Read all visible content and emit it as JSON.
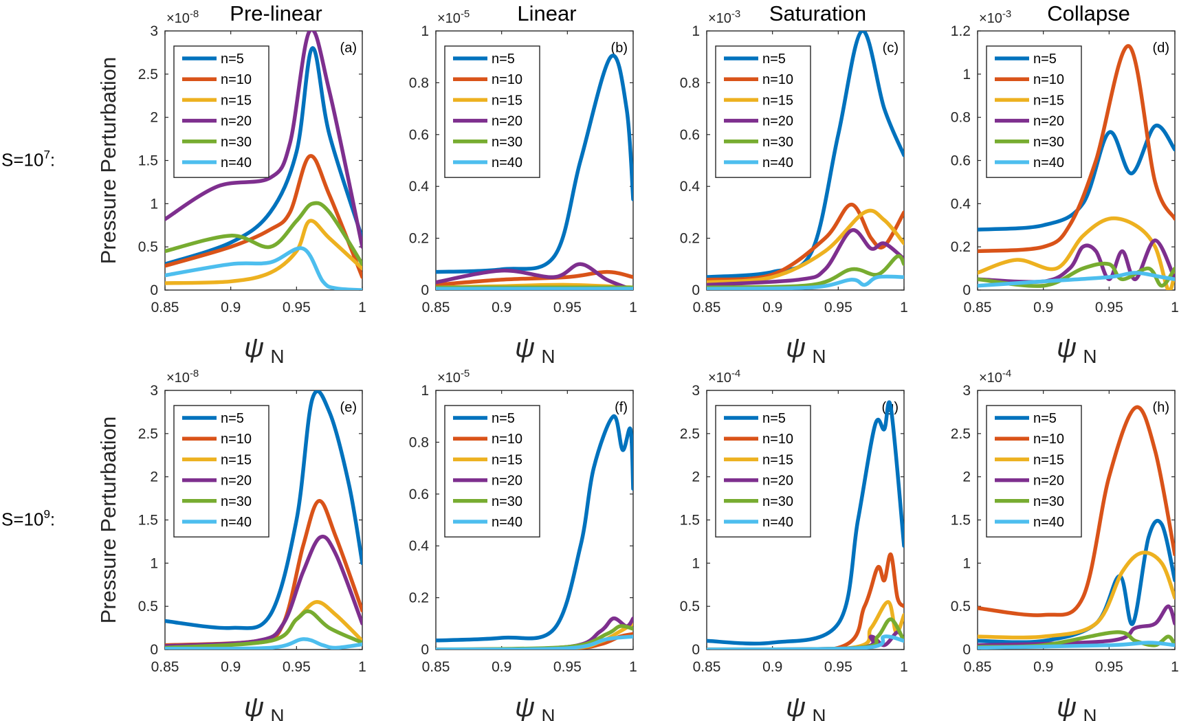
{
  "row_labels": [
    {
      "base": "S=10",
      "exp": "7",
      "suffix": ":"
    },
    {
      "base": "S=10",
      "exp": "9",
      "suffix": ":"
    }
  ],
  "ylabel": "Pressure Perturbation",
  "xlabel_symbol": "ψ",
  "xlabel_sub": "N",
  "x_ticks": [
    "0.85",
    "0.9",
    "0.95",
    "1"
  ],
  "colors": {
    "n=5": "#0072bd",
    "n=10": "#d95319",
    "n=15": "#edb120",
    "n=20": "#7e2f8e",
    "n=30": "#77ac30",
    "n=40": "#4dbeee"
  },
  "chart_data": [
    {
      "type": "line",
      "panel": "(a)",
      "title": "Pre-linear",
      "scale": "×10",
      "scale_exp": "-8",
      "xlim": [
        0.85,
        1
      ],
      "ylim": [
        0,
        3
      ],
      "y_ticks": [
        "0",
        "0.5",
        "1",
        "1.5",
        "2",
        "2.5",
        "3"
      ],
      "legend_position": "top-left",
      "series": [
        {
          "name": "n=5",
          "x": [
            0.85,
            0.9,
            0.93,
            0.95,
            0.962,
            0.975,
            1.0
          ],
          "y": [
            0.3,
            0.55,
            0.9,
            1.6,
            2.8,
            1.8,
            0.6
          ]
        },
        {
          "name": "n=10",
          "x": [
            0.85,
            0.9,
            0.93,
            0.945,
            0.96,
            0.975,
            1.0
          ],
          "y": [
            0.28,
            0.5,
            0.7,
            0.9,
            1.55,
            1.1,
            0.15
          ]
        },
        {
          "name": "n=15",
          "x": [
            0.85,
            0.9,
            0.93,
            0.95,
            0.96,
            0.975,
            1.0
          ],
          "y": [
            0.08,
            0.1,
            0.2,
            0.45,
            0.8,
            0.6,
            0.25
          ]
        },
        {
          "name": "n=20",
          "x": [
            0.85,
            0.89,
            0.93,
            0.945,
            0.96,
            0.975,
            1.0
          ],
          "y": [
            0.82,
            1.2,
            1.3,
            1.7,
            3.0,
            2.3,
            0.5
          ]
        },
        {
          "name": "n=30",
          "x": [
            0.85,
            0.9,
            0.93,
            0.95,
            0.962,
            0.975,
            1.0
          ],
          "y": [
            0.45,
            0.63,
            0.5,
            0.8,
            1.0,
            0.9,
            0.3
          ]
        },
        {
          "name": "n=40",
          "x": [
            0.85,
            0.9,
            0.93,
            0.955,
            0.97,
            0.98,
            1.0
          ],
          "y": [
            0.17,
            0.3,
            0.32,
            0.48,
            0.1,
            0.02,
            0.0
          ]
        }
      ]
    },
    {
      "type": "line",
      "panel": "(b)",
      "title": "Linear",
      "scale": "×10",
      "scale_exp": "-5",
      "xlim": [
        0.85,
        1
      ],
      "ylim": [
        0,
        1
      ],
      "y_ticks": [
        "0",
        "0.2",
        "0.4",
        "0.6",
        "0.8",
        "1"
      ],
      "legend_position": "top-left",
      "series": [
        {
          "name": "n=5",
          "x": [
            0.85,
            0.9,
            0.94,
            0.96,
            0.983,
            0.995,
            1.0
          ],
          "y": [
            0.07,
            0.08,
            0.13,
            0.5,
            0.9,
            0.7,
            0.35
          ]
        },
        {
          "name": "n=10",
          "x": [
            0.85,
            0.9,
            0.95,
            0.98,
            1.0
          ],
          "y": [
            0.02,
            0.04,
            0.05,
            0.07,
            0.05
          ]
        },
        {
          "name": "n=15",
          "x": [
            0.85,
            0.9,
            0.95,
            1.0
          ],
          "y": [
            0.01,
            0.015,
            0.02,
            0.01
          ]
        },
        {
          "name": "n=20",
          "x": [
            0.85,
            0.9,
            0.94,
            0.96,
            0.98,
            1.0
          ],
          "y": [
            0.03,
            0.075,
            0.05,
            0.1,
            0.04,
            0.0
          ]
        },
        {
          "name": "n=30",
          "x": [
            0.85,
            0.95,
            1.0
          ],
          "y": [
            0.01,
            0.01,
            0.01
          ]
        },
        {
          "name": "n=40",
          "x": [
            0.85,
            0.95,
            1.0
          ],
          "y": [
            0.005,
            0.005,
            0.005
          ]
        }
      ]
    },
    {
      "type": "line",
      "panel": "(c)",
      "title": "Saturation",
      "scale": "×10",
      "scale_exp": "-3",
      "xlim": [
        0.85,
        1
      ],
      "ylim": [
        0,
        1
      ],
      "y_ticks": [
        "0",
        "0.2",
        "0.4",
        "0.6",
        "0.8",
        "1"
      ],
      "legend_position": "top-left",
      "series": [
        {
          "name": "n=5",
          "x": [
            0.85,
            0.9,
            0.93,
            0.95,
            0.968,
            0.985,
            1.0
          ],
          "y": [
            0.05,
            0.07,
            0.15,
            0.6,
            1.0,
            0.7,
            0.52
          ]
        },
        {
          "name": "n=10",
          "x": [
            0.85,
            0.9,
            0.94,
            0.96,
            0.975,
            0.985,
            1.0
          ],
          "y": [
            0.04,
            0.06,
            0.2,
            0.33,
            0.2,
            0.17,
            0.3
          ]
        },
        {
          "name": "n=15",
          "x": [
            0.85,
            0.9,
            0.94,
            0.97,
            0.985,
            1.0
          ],
          "y": [
            0.03,
            0.05,
            0.15,
            0.3,
            0.27,
            0.18
          ]
        },
        {
          "name": "n=20",
          "x": [
            0.85,
            0.92,
            0.94,
            0.96,
            0.975,
            0.985,
            1.0
          ],
          "y": [
            0.02,
            0.04,
            0.08,
            0.23,
            0.16,
            0.18,
            0.12
          ]
        },
        {
          "name": "n=30",
          "x": [
            0.85,
            0.93,
            0.96,
            0.98,
            0.995,
            1.0
          ],
          "y": [
            0.01,
            0.02,
            0.08,
            0.06,
            0.13,
            0.1
          ]
        },
        {
          "name": "n=40",
          "x": [
            0.85,
            0.93,
            0.96,
            0.97,
            0.98,
            1.0
          ],
          "y": [
            0.005,
            0.01,
            0.04,
            0.02,
            0.05,
            0.05
          ]
        }
      ]
    },
    {
      "type": "line",
      "panel": "(d)",
      "title": "Collapse",
      "scale": "×10",
      "scale_exp": "-3",
      "xlim": [
        0.85,
        1
      ],
      "ylim": [
        0,
        1.2
      ],
      "y_ticks": [
        "0",
        "0.2",
        "0.4",
        "0.6",
        "0.8",
        "1",
        "1.2"
      ],
      "legend_position": "top-left",
      "series": [
        {
          "name": "n=5",
          "x": [
            0.85,
            0.9,
            0.93,
            0.95,
            0.967,
            0.985,
            1.0
          ],
          "y": [
            0.28,
            0.3,
            0.4,
            0.73,
            0.54,
            0.76,
            0.65
          ]
        },
        {
          "name": "n=10",
          "x": [
            0.85,
            0.9,
            0.92,
            0.94,
            0.965,
            0.985,
            1.0
          ],
          "y": [
            0.18,
            0.2,
            0.3,
            0.6,
            1.13,
            0.5,
            0.33
          ]
        },
        {
          "name": "n=15",
          "x": [
            0.85,
            0.88,
            0.91,
            0.93,
            0.95,
            0.97,
            0.985,
            0.995,
            1.0
          ],
          "y": [
            0.08,
            0.14,
            0.1,
            0.25,
            0.33,
            0.3,
            0.2,
            0.0,
            0.08
          ]
        },
        {
          "name": "n=20",
          "x": [
            0.85,
            0.9,
            0.92,
            0.93,
            0.94,
            0.95,
            0.96,
            0.97,
            0.985,
            1.0
          ],
          "y": [
            0.05,
            0.04,
            0.1,
            0.2,
            0.18,
            0.05,
            0.18,
            0.05,
            0.23,
            0.05
          ]
        },
        {
          "name": "n=30",
          "x": [
            0.85,
            0.9,
            0.93,
            0.95,
            0.96,
            0.98,
            0.99,
            1.0
          ],
          "y": [
            0.05,
            0.02,
            0.1,
            0.12,
            0.05,
            0.1,
            0.02,
            0.1
          ]
        },
        {
          "name": "n=40",
          "x": [
            0.85,
            0.9,
            0.95,
            0.97,
            0.99,
            1.0
          ],
          "y": [
            0.02,
            0.04,
            0.06,
            0.08,
            0.06,
            0.05
          ]
        }
      ]
    },
    {
      "type": "line",
      "panel": "(e)",
      "title": "",
      "scale": "×10",
      "scale_exp": "-8",
      "xlim": [
        0.85,
        1
      ],
      "ylim": [
        0,
        3
      ],
      "y_ticks": [
        "0",
        "0.5",
        "1",
        "1.5",
        "2",
        "2.5",
        "3"
      ],
      "legend_position": "top-left",
      "series": [
        {
          "name": "n=5",
          "x": [
            0.85,
            0.9,
            0.93,
            0.95,
            0.962,
            0.975,
            0.99,
            1.0
          ],
          "y": [
            0.33,
            0.25,
            0.4,
            1.5,
            2.9,
            2.75,
            1.9,
            1.0
          ]
        },
        {
          "name": "n=10",
          "x": [
            0.85,
            0.92,
            0.94,
            0.955,
            0.967,
            0.98,
            1.0
          ],
          "y": [
            0.05,
            0.1,
            0.3,
            1.2,
            1.72,
            1.3,
            0.45
          ]
        },
        {
          "name": "n=15",
          "x": [
            0.85,
            0.93,
            0.95,
            0.965,
            0.98,
            1.0
          ],
          "y": [
            0.03,
            0.1,
            0.35,
            0.55,
            0.4,
            0.1
          ]
        },
        {
          "name": "n=20",
          "x": [
            0.85,
            0.92,
            0.94,
            0.955,
            0.968,
            0.98,
            1.0
          ],
          "y": [
            0.04,
            0.1,
            0.3,
            0.9,
            1.3,
            1.1,
            0.3
          ]
        },
        {
          "name": "n=30",
          "x": [
            0.85,
            0.93,
            0.95,
            0.96,
            0.975,
            1.0
          ],
          "y": [
            0.02,
            0.1,
            0.35,
            0.44,
            0.25,
            0.08
          ]
        },
        {
          "name": "n=40",
          "x": [
            0.85,
            0.93,
            0.955,
            0.97,
            0.98,
            1.0
          ],
          "y": [
            0.01,
            0.02,
            0.12,
            0.05,
            0.02,
            0.06
          ]
        }
      ]
    },
    {
      "type": "line",
      "panel": "(f)",
      "title": "",
      "scale": "×10",
      "scale_exp": "-5",
      "xlim": [
        0.85,
        1
      ],
      "ylim": [
        0,
        1
      ],
      "y_ticks": [
        "0",
        "0.2",
        "0.4",
        "0.6",
        "0.8",
        "1"
      ],
      "legend_position": "top-left",
      "series": [
        {
          "name": "n=5",
          "x": [
            0.85,
            0.9,
            0.94,
            0.96,
            0.97,
            0.985,
            0.992,
            0.998,
            1.0
          ],
          "y": [
            0.035,
            0.045,
            0.08,
            0.4,
            0.7,
            0.9,
            0.77,
            0.85,
            0.62
          ]
        },
        {
          "name": "n=10",
          "x": [
            0.85,
            0.95,
            0.975,
            0.99,
            1.0
          ],
          "y": [
            0.0,
            0.005,
            0.02,
            0.05,
            0.06
          ]
        },
        {
          "name": "n=15",
          "x": [
            0.85,
            0.95,
            0.975,
            0.99,
            1.0
          ],
          "y": [
            0.0,
            0.005,
            0.03,
            0.07,
            0.1
          ]
        },
        {
          "name": "n=20",
          "x": [
            0.85,
            0.95,
            0.975,
            0.985,
            0.995,
            1.0
          ],
          "y": [
            0.0,
            0.01,
            0.07,
            0.12,
            0.09,
            0.12
          ]
        },
        {
          "name": "n=30",
          "x": [
            0.85,
            0.95,
            0.98,
            0.99,
            1.0
          ],
          "y": [
            0.0,
            0.01,
            0.06,
            0.09,
            0.08
          ]
        },
        {
          "name": "n=40",
          "x": [
            0.85,
            0.95,
            0.98,
            1.0
          ],
          "y": [
            0.0,
            0.005,
            0.04,
            0.05
          ]
        }
      ]
    },
    {
      "type": "line",
      "panel": "(g)",
      "title": "",
      "scale": "×10",
      "scale_exp": "-4",
      "xlim": [
        0.85,
        1
      ],
      "ylim": [
        0,
        3
      ],
      "y_ticks": [
        "0",
        "0.5",
        "1",
        "1.5",
        "2",
        "2.5",
        "3"
      ],
      "legend_position": "top-left",
      "series": [
        {
          "name": "n=5",
          "x": [
            0.85,
            0.9,
            0.95,
            0.965,
            0.978,
            0.985,
            0.99,
            1.0
          ],
          "y": [
            0.1,
            0.08,
            0.3,
            1.5,
            2.6,
            2.55,
            2.8,
            1.2
          ]
        },
        {
          "name": "n=10",
          "x": [
            0.85,
            0.95,
            0.97,
            0.98,
            0.985,
            0.99,
            0.995,
            1.0
          ],
          "y": [
            0.0,
            0.02,
            0.5,
            0.95,
            0.8,
            1.1,
            0.6,
            0.5
          ]
        },
        {
          "name": "n=15",
          "x": [
            0.85,
            0.96,
            0.975,
            0.988,
            0.994,
            1.0
          ],
          "y": [
            0.0,
            0.02,
            0.25,
            0.55,
            0.2,
            0.4
          ]
        },
        {
          "name": "n=20",
          "x": [
            0.85,
            0.965,
            0.975,
            0.985,
            0.995,
            1.0
          ],
          "y": [
            0.0,
            0.02,
            0.15,
            0.05,
            0.2,
            0.1
          ]
        },
        {
          "name": "n=30",
          "x": [
            0.85,
            0.965,
            0.98,
            0.99,
            1.0
          ],
          "y": [
            0.0,
            0.02,
            0.15,
            0.35,
            0.1
          ]
        },
        {
          "name": "n=40",
          "x": [
            0.85,
            0.97,
            0.985,
            1.0
          ],
          "y": [
            0.0,
            0.02,
            0.15,
            0.1
          ]
        }
      ]
    },
    {
      "type": "line",
      "panel": "(h)",
      "title": "",
      "scale": "×10",
      "scale_exp": "-4",
      "xlim": [
        0.85,
        1
      ],
      "ylim": [
        0,
        3
      ],
      "y_ticks": [
        "0",
        "0.5",
        "1",
        "1.5",
        "2",
        "2.5",
        "3"
      ],
      "legend_position": "top-left",
      "series": [
        {
          "name": "n=5",
          "x": [
            0.85,
            0.9,
            0.94,
            0.958,
            0.968,
            0.98,
            0.99,
            1.0
          ],
          "y": [
            0.1,
            0.1,
            0.3,
            0.85,
            0.3,
            1.3,
            1.45,
            0.8
          ]
        },
        {
          "name": "n=10",
          "x": [
            0.85,
            0.9,
            0.93,
            0.95,
            0.97,
            0.985,
            1.0
          ],
          "y": [
            0.48,
            0.4,
            0.6,
            2.0,
            2.8,
            2.3,
            1.1
          ]
        },
        {
          "name": "n=15",
          "x": [
            0.85,
            0.9,
            0.94,
            0.96,
            0.975,
            0.99,
            1.0
          ],
          "y": [
            0.15,
            0.15,
            0.3,
            0.9,
            1.12,
            1.0,
            0.6
          ]
        },
        {
          "name": "n=20",
          "x": [
            0.85,
            0.95,
            0.97,
            0.985,
            0.995,
            1.0
          ],
          "y": [
            0.05,
            0.1,
            0.25,
            0.3,
            0.5,
            0.3
          ]
        },
        {
          "name": "n=30",
          "x": [
            0.85,
            0.9,
            0.955,
            0.97,
            0.985,
            0.995,
            1.0
          ],
          "y": [
            0.03,
            0.05,
            0.2,
            0.1,
            0.05,
            0.15,
            0.05
          ]
        },
        {
          "name": "n=40",
          "x": [
            0.85,
            0.95,
            0.98,
            1.0
          ],
          "y": [
            0.02,
            0.05,
            0.08,
            0.05
          ]
        }
      ]
    }
  ]
}
